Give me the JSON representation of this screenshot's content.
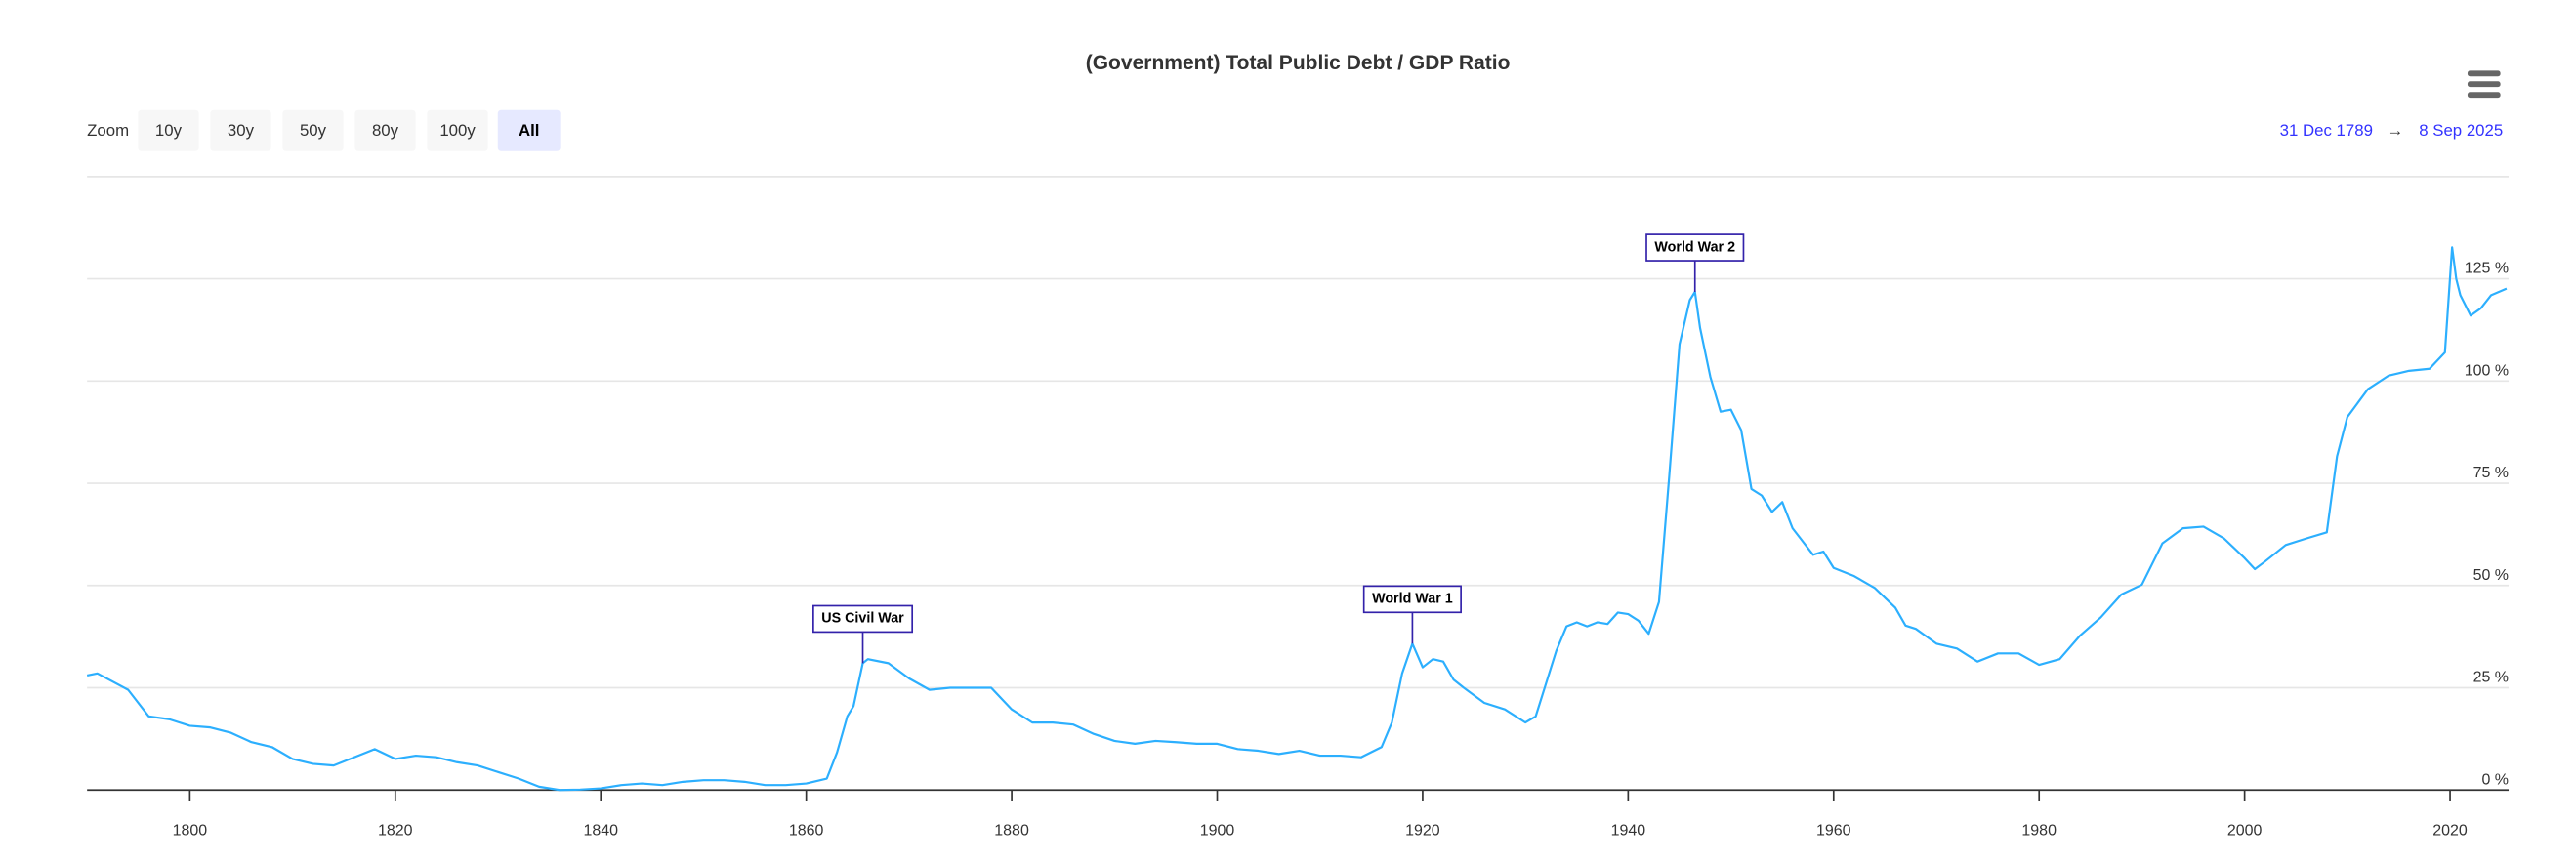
{
  "zoom": {
    "label": "Zoom",
    "buttons": [
      "10y",
      "30y",
      "50y",
      "80y",
      "100y",
      "All"
    ],
    "selected": 5
  },
  "range": {
    "from": "31 Dec 1789",
    "arrow": "→",
    "to": "8 Sep 2025"
  },
  "chart_data": {
    "type": "line",
    "title": "(Government) Total Public Debt / GDP Ratio",
    "color": "#2caffe",
    "x": [
      1790,
      1791,
      1794,
      1796,
      1798,
      1800,
      1802,
      1804,
      1806,
      1808,
      1810,
      1812,
      1814,
      1816,
      1818,
      1820,
      1822,
      1824,
      1826,
      1828,
      1830,
      1832,
      1834,
      1836,
      1838,
      1840,
      1842,
      1844,
      1846,
      1848,
      1850,
      1852,
      1854,
      1856,
      1858,
      1860,
      1862,
      1863,
      1864,
      1864.6,
      1865.5,
      1866,
      1868,
      1870,
      1872,
      1874,
      1876,
      1878,
      1880,
      1882,
      1884,
      1886,
      1888,
      1890,
      1892,
      1894,
      1896,
      1898,
      1900,
      1902,
      1904,
      1906,
      1908,
      1910,
      1912,
      1914,
      1916,
      1917,
      1918,
      1919,
      1920,
      1921,
      1922,
      1923,
      1924,
      1926,
      1928,
      1930,
      1931,
      1932,
      1933,
      1934,
      1935,
      1936,
      1937,
      1938,
      1939,
      1940,
      1941,
      1942,
      1943,
      1944,
      1945,
      1946,
      1946.5,
      1947,
      1948,
      1949,
      1950,
      1951,
      1952,
      1953,
      1954,
      1955,
      1956,
      1958,
      1959,
      1960,
      1962,
      1964,
      1966,
      1967,
      1968,
      1970,
      1972,
      1974,
      1976,
      1978,
      1980,
      1982,
      1984,
      1986,
      1988,
      1990,
      1992,
      1994,
      1996,
      1998,
      2000,
      2001,
      2002,
      2004,
      2006,
      2008,
      2009,
      2010,
      2012,
      2014,
      2016,
      2018,
      2019.5,
      2020.2,
      2020.6,
      2021,
      2022,
      2023,
      2024,
      2025.5
    ],
    "values": [
      28,
      28.5,
      24.5,
      18,
      17.3,
      15.7,
      15.3,
      14,
      11.7,
      10.5,
      7.6,
      6.4,
      6,
      8,
      10,
      7.6,
      8.4,
      8,
      6.8,
      6,
      4.4,
      2.8,
      0.8,
      0,
      0.1,
      0.4,
      1.2,
      1.6,
      1.2,
      2,
      2.4,
      2.4,
      2,
      1.2,
      1.2,
      1.6,
      2.8,
      9.2,
      18,
      20.5,
      31,
      32,
      31,
      27.3,
      24.5,
      25,
      25,
      25,
      19.7,
      16.5,
      16.5,
      16,
      13.7,
      12,
      11.3,
      12,
      11.7,
      11.3,
      11.3,
      10,
      9.6,
      8.8,
      9.6,
      8.4,
      8.4,
      8,
      10.5,
      16.5,
      28.5,
      35.8,
      30,
      32,
      31.4,
      27,
      25,
      21.3,
      19.7,
      16.5,
      18,
      26,
      34,
      40,
      41,
      40,
      41,
      40.6,
      43.4,
      43,
      41.4,
      38.2,
      46,
      76.8,
      109,
      119.8,
      121.8,
      113,
      101,
      92.5,
      93,
      88,
      73.6,
      72,
      68,
      70.4,
      64,
      57.5,
      58.3,
      54.3,
      52.3,
      49.4,
      44.6,
      40.2,
      39.4,
      35.8,
      34.6,
      31.4,
      33.4,
      33.4,
      30.6,
      32,
      37.8,
      42.2,
      47.8,
      50.2,
      60.3,
      64,
      64.4,
      61.5,
      56.7,
      54,
      55.9,
      59.9,
      61.5,
      63,
      81.6,
      91.2,
      98,
      101.3,
      102.5,
      103,
      107,
      132.7,
      125,
      121,
      116,
      117.8,
      121,
      122.6
    ],
    "xlim": [
      1790,
      2025.7
    ],
    "ylim": [
      0,
      150
    ],
    "xticks": [
      1800,
      1820,
      1840,
      1860,
      1880,
      1900,
      1920,
      1940,
      1960,
      1980,
      2000,
      2020
    ],
    "yticks": [
      {
        "value": 0,
        "label": "0 %"
      },
      {
        "value": 25,
        "label": "25 %"
      },
      {
        "value": 50,
        "label": "50 %"
      },
      {
        "value": 75,
        "label": "75 %"
      },
      {
        "value": 100,
        "label": "100 %"
      },
      {
        "value": 125,
        "label": "125 %"
      }
    ],
    "grid": true,
    "annotations": [
      {
        "text": "US Civil War",
        "x": 1865.5,
        "y": 31
      },
      {
        "text": "World War 1",
        "x": 1919,
        "y": 35.8
      },
      {
        "text": "World War 2",
        "x": 1946.5,
        "y": 121.8
      }
    ]
  }
}
